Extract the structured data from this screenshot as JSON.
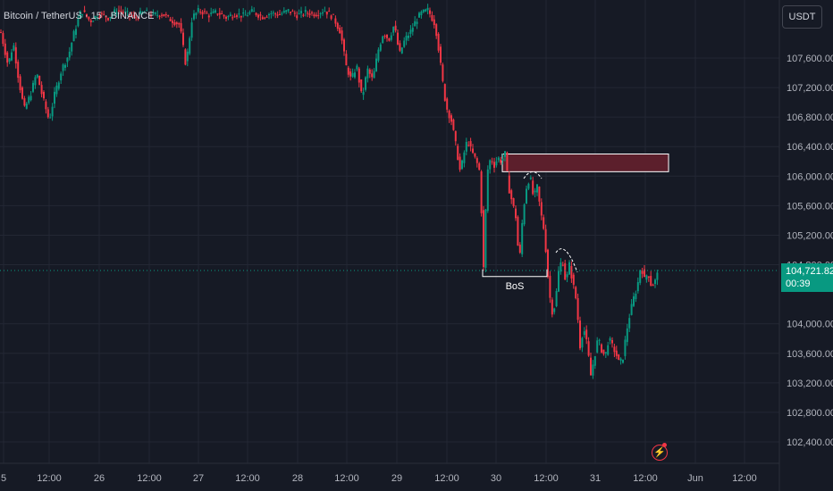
{
  "header": {
    "symbol_title": "Bitcoin / TetherUS · 15 · BINANCE"
  },
  "currency_badge": "USDT",
  "last_price": {
    "value": "104,721.82",
    "countdown": "00:39"
  },
  "annotation": {
    "bos_label": "BoS"
  },
  "colors": {
    "background": "#161a25",
    "up": "#089981",
    "down": "#f23645",
    "zone": "#5c1f2c",
    "grid": "#232734"
  },
  "icons": {
    "alert": "lightning-icon"
  },
  "chart_data": {
    "type": "candlestick",
    "y_ticks": [
      "107,600.00",
      "107,200.00",
      "106,800.00",
      "106,400.00",
      "106,000.00",
      "105,600.00",
      "105,200.00",
      "104,800.00",
      "104,000.00",
      "103,600.00",
      "103,200.00",
      "102,800.00",
      "102,400.00"
    ],
    "y_tick_values": [
      107600,
      107200,
      106800,
      106400,
      106000,
      105600,
      105200,
      104800,
      104000,
      103600,
      103200,
      102800,
      102400
    ],
    "x_ticks": [
      "5",
      "12:00",
      "26",
      "12:00",
      "27",
      "12:00",
      "28",
      "12:00",
      "29",
      "12:00",
      "30",
      "12:00",
      "31",
      "12:00",
      "Jun",
      "12:00"
    ],
    "ylim": [
      102200,
      108250
    ],
    "last_price": 104721.82,
    "supply_zone": {
      "low": 106060,
      "high": 106300
    },
    "bos_level": 104640,
    "price_path": [
      [
        0,
        107950
      ],
      [
        8,
        107500
      ],
      [
        14,
        107800
      ],
      [
        20,
        107300
      ],
      [
        26,
        106900
      ],
      [
        33,
        107100
      ],
      [
        40,
        107400
      ],
      [
        46,
        107100
      ],
      [
        54,
        106750
      ],
      [
        60,
        107100
      ],
      [
        68,
        107450
      ],
      [
        76,
        107650
      ],
      [
        82,
        107950
      ],
      [
        90,
        108250
      ],
      [
        100,
        108100
      ],
      [
        110,
        108200
      ],
      [
        120,
        108150
      ],
      [
        130,
        108250
      ],
      [
        140,
        108200
      ],
      [
        150,
        108150
      ],
      [
        160,
        108220
      ],
      [
        170,
        108180
      ],
      [
        180,
        108200
      ],
      [
        190,
        108120
      ],
      [
        200,
        108050
      ],
      [
        207,
        107500
      ],
      [
        214,
        108150
      ],
      [
        222,
        108250
      ],
      [
        232,
        108180
      ],
      [
        242,
        108220
      ],
      [
        252,
        108150
      ],
      [
        262,
        108200
      ],
      [
        272,
        108170
      ],
      [
        282,
        108230
      ],
      [
        292,
        108160
      ],
      [
        302,
        108210
      ],
      [
        312,
        108190
      ],
      [
        322,
        108240
      ],
      [
        332,
        108180
      ],
      [
        342,
        108220
      ],
      [
        352,
        108200
      ],
      [
        362,
        108250
      ],
      [
        372,
        108150
      ],
      [
        380,
        107950
      ],
      [
        386,
        107500
      ],
      [
        392,
        107300
      ],
      [
        398,
        107500
      ],
      [
        404,
        107050
      ],
      [
        410,
        107450
      ],
      [
        416,
        107300
      ],
      [
        422,
        107700
      ],
      [
        428,
        107950
      ],
      [
        434,
        107850
      ],
      [
        440,
        108050
      ],
      [
        446,
        107650
      ],
      [
        452,
        107850
      ],
      [
        458,
        107950
      ],
      [
        464,
        108100
      ],
      [
        470,
        108200
      ],
      [
        478,
        108250
      ],
      [
        486,
        108050
      ],
      [
        490,
        107700
      ],
      [
        494,
        107300
      ],
      [
        498,
        106950
      ],
      [
        504,
        106750
      ],
      [
        510,
        106350
      ],
      [
        514,
        106050
      ],
      [
        518,
        106300
      ],
      [
        522,
        106500
      ],
      [
        526,
        106350
      ],
      [
        532,
        106200
      ],
      [
        536,
        106050
      ],
      [
        540,
        104750
      ],
      [
        544,
        106050
      ],
      [
        548,
        106250
      ],
      [
        552,
        106150
      ],
      [
        556,
        106250
      ],
      [
        560,
        106200
      ],
      [
        564,
        106300
      ],
      [
        568,
        105850
      ],
      [
        572,
        105650
      ],
      [
        576,
        105450
      ],
      [
        580,
        104800
      ],
      [
        584,
        105500
      ],
      [
        588,
        105850
      ],
      [
        592,
        106000
      ],
      [
        596,
        105700
      ],
      [
        600,
        105850
      ],
      [
        604,
        105500
      ],
      [
        608,
        105250
      ],
      [
        612,
        104650
      ],
      [
        616,
        104150
      ],
      [
        620,
        104250
      ],
      [
        624,
        104700
      ],
      [
        628,
        104900
      ],
      [
        632,
        104550
      ],
      [
        636,
        104800
      ],
      [
        640,
        104550
      ],
      [
        644,
        104300
      ],
      [
        648,
        103700
      ],
      [
        652,
        103950
      ],
      [
        656,
        103700
      ],
      [
        660,
        103300
      ],
      [
        664,
        103550
      ],
      [
        668,
        103800
      ],
      [
        672,
        103650
      ],
      [
        676,
        103550
      ],
      [
        680,
        103800
      ],
      [
        684,
        103700
      ],
      [
        688,
        103600
      ],
      [
        692,
        103450
      ],
      [
        696,
        103550
      ],
      [
        700,
        103900
      ],
      [
        704,
        104150
      ],
      [
        708,
        104350
      ],
      [
        712,
        104500
      ],
      [
        716,
        104800
      ],
      [
        720,
        104600
      ],
      [
        724,
        104700
      ],
      [
        728,
        104500
      ],
      [
        732,
        104580
      ],
      [
        736,
        104721.82
      ]
    ]
  }
}
